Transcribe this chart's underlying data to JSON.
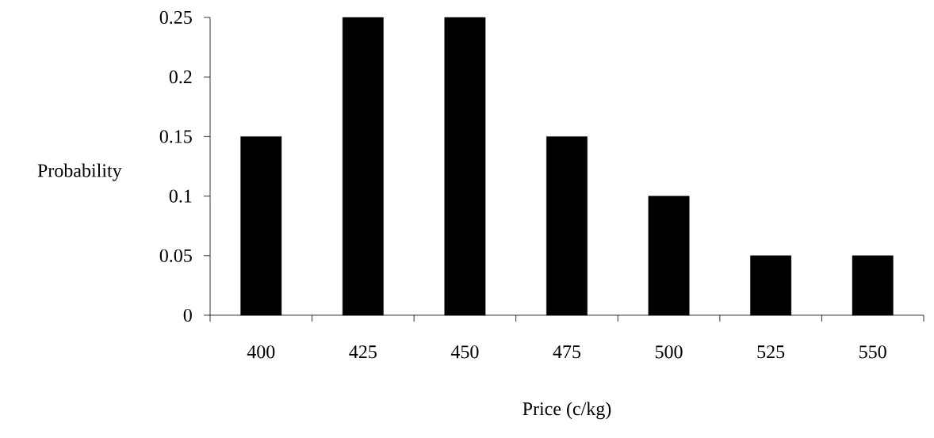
{
  "chart_data": {
    "type": "bar",
    "xlabel": "Price (c/kg)",
    "ylabel": "Probability",
    "categories": [
      "400",
      "425",
      "450",
      "475",
      "500",
      "525",
      "550"
    ],
    "values": [
      0.15,
      0.25,
      0.25,
      0.15,
      0.1,
      0.05,
      0.05
    ],
    "color": "#000000",
    "ylim": [
      0,
      0.25
    ],
    "yticks": [
      0,
      0.05,
      0.1,
      0.15,
      0.2,
      0.25
    ]
  }
}
